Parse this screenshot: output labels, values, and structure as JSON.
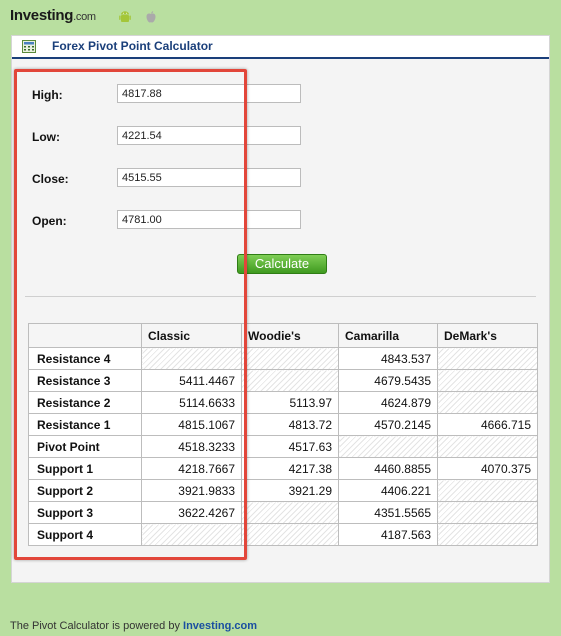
{
  "header": {
    "logo_text": "Investing",
    "logo_suffix": ".com",
    "icons": [
      "android-icon",
      "apple-icon"
    ]
  },
  "panel": {
    "title": "Forex Pivot Point Calculator",
    "icon": "calculator-icon",
    "title_color": "#1a3f7a"
  },
  "form": {
    "fields": [
      {
        "label": "High:",
        "value": "4817.88"
      },
      {
        "label": "Low:",
        "value": "4221.54"
      },
      {
        "label": "Close:",
        "value": "4515.55"
      },
      {
        "label": "Open:",
        "value": "4781.00"
      }
    ],
    "calculate_label": "Calculate",
    "button_color": "#4caf2a"
  },
  "table": {
    "headers": [
      "",
      "Classic",
      "Woodie's",
      "Camarilla",
      "DeMark's"
    ],
    "rows": [
      {
        "label": "Resistance 4",
        "cells": [
          "",
          "",
          "4843.537",
          ""
        ]
      },
      {
        "label": "Resistance 3",
        "cells": [
          "5411.4467",
          "",
          "4679.5435",
          ""
        ]
      },
      {
        "label": "Resistance 2",
        "cells": [
          "5114.6633",
          "5113.97",
          "4624.879",
          ""
        ]
      },
      {
        "label": "Resistance 1",
        "cells": [
          "4815.1067",
          "4813.72",
          "4570.2145",
          "4666.715"
        ]
      },
      {
        "label": "Pivot Point",
        "cells": [
          "4518.3233",
          "4517.63",
          "",
          ""
        ]
      },
      {
        "label": "Support 1",
        "cells": [
          "4218.7667",
          "4217.38",
          "4460.8855",
          "4070.375"
        ]
      },
      {
        "label": "Support 2",
        "cells": [
          "3921.9833",
          "3921.29",
          "4406.221",
          ""
        ]
      },
      {
        "label": "Support 3",
        "cells": [
          "3622.4267",
          "",
          "4351.5565",
          ""
        ]
      },
      {
        "label": "Support 4",
        "cells": [
          "",
          "",
          "4187.563",
          ""
        ]
      }
    ]
  },
  "highlight": {
    "color": "#e2463a"
  },
  "footer": {
    "text": "The Pivot Calculator is powered by",
    "brand": "Investing.com"
  }
}
